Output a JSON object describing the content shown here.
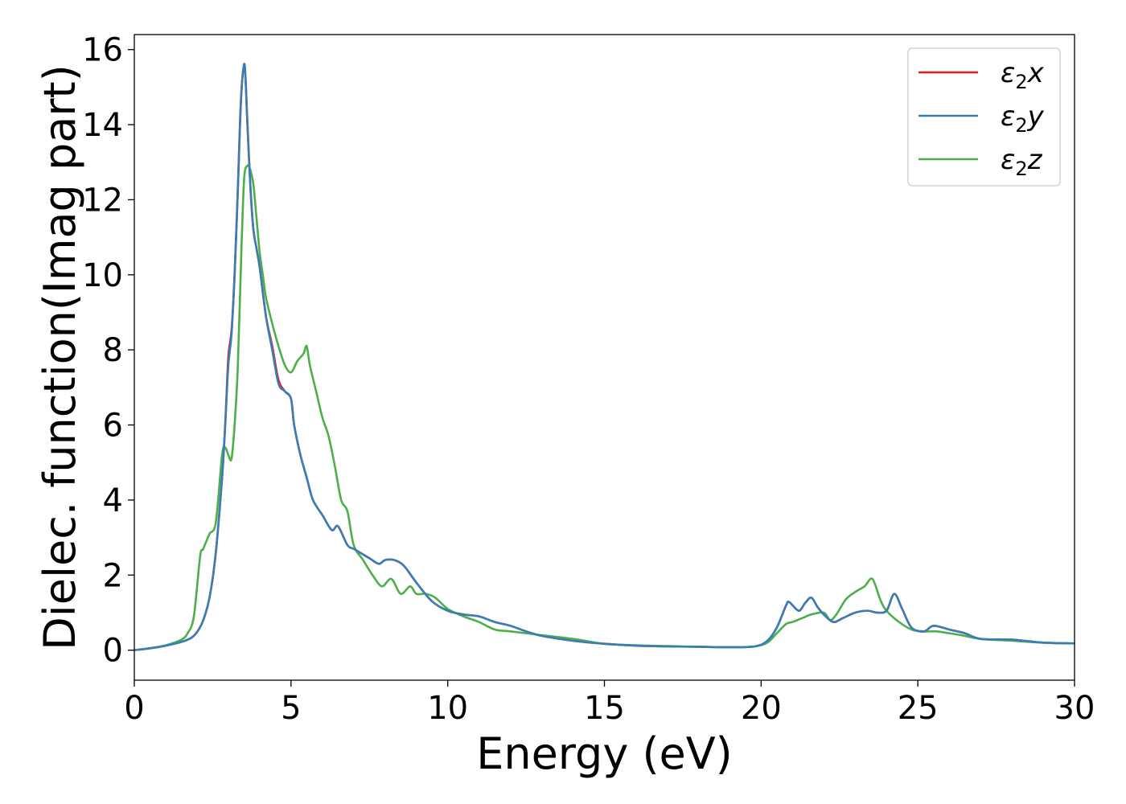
{
  "chart_data": {
    "type": "line",
    "xlabel": "Energy (eV)",
    "ylabel": "Dielec. function(Imag part)",
    "xlim": [
      0,
      30
    ],
    "ylim": [
      -0.8,
      16.4
    ],
    "xticks": [
      0,
      5,
      10,
      15,
      20,
      25,
      30
    ],
    "yticks": [
      0,
      2,
      4,
      6,
      8,
      10,
      12,
      14,
      16
    ],
    "grid": false,
    "legend_position": "top-right",
    "series": [
      {
        "name": "ε2x",
        "legend_main": "ε",
        "legend_sub": "2",
        "legend_suffix": "x",
        "color": "#e41a1c",
        "x": [
          0,
          0.5,
          1.0,
          1.5,
          1.8,
          2.0,
          2.2,
          2.4,
          2.6,
          2.8,
          2.9,
          3.0,
          3.1,
          3.2,
          3.3,
          3.4,
          3.5,
          3.55,
          3.6,
          3.7,
          3.8,
          3.9,
          4.0,
          4.2,
          4.4,
          4.6,
          4.8,
          5.0,
          5.1,
          5.3,
          5.5,
          5.7,
          6.0,
          6.3,
          6.5,
          6.8,
          7.0,
          7.2,
          7.5,
          7.8,
          8.0,
          8.3,
          8.6,
          9.0,
          9.5,
          10.0,
          10.5,
          11.0,
          11.5,
          12.0,
          12.5,
          13.0,
          14.0,
          15.0,
          16.0,
          17.0,
          18.0,
          19.0,
          19.8,
          20.2,
          20.5,
          20.8,
          20.9,
          21.2,
          21.4,
          21.6,
          21.8,
          22.0,
          22.3,
          22.6,
          23.0,
          23.4,
          23.7,
          24.0,
          24.25,
          24.5,
          24.8,
          25.2,
          25.5,
          26.0,
          26.5,
          27.0,
          28.0,
          29.0,
          30.0
        ],
        "values": [
          0.0,
          0.05,
          0.12,
          0.22,
          0.32,
          0.48,
          0.8,
          1.4,
          2.6,
          4.6,
          6.0,
          7.8,
          8.5,
          10.0,
          12.2,
          14.6,
          15.6,
          15.2,
          14.2,
          12.4,
          11.2,
          10.7,
          10.2,
          8.9,
          8.1,
          7.2,
          6.9,
          6.7,
          6.0,
          5.2,
          4.6,
          4.0,
          3.6,
          3.2,
          3.3,
          2.8,
          2.7,
          2.6,
          2.45,
          2.3,
          2.4,
          2.4,
          2.25,
          1.8,
          1.3,
          1.05,
          0.95,
          0.9,
          0.75,
          0.65,
          0.5,
          0.38,
          0.25,
          0.17,
          0.12,
          0.1,
          0.09,
          0.08,
          0.1,
          0.25,
          0.6,
          1.2,
          1.28,
          1.05,
          1.25,
          1.4,
          1.15,
          0.95,
          0.75,
          0.85,
          1.0,
          1.05,
          1.0,
          1.05,
          1.5,
          1.1,
          0.6,
          0.5,
          0.65,
          0.55,
          0.45,
          0.3,
          0.28,
          0.2,
          0.18
        ]
      },
      {
        "name": "ε2y",
        "legend_main": "ε",
        "legend_sub": "2",
        "legend_suffix": "y",
        "color": "#377eb8",
        "x": [
          0,
          0.5,
          1.0,
          1.5,
          1.8,
          2.0,
          2.2,
          2.4,
          2.6,
          2.8,
          2.9,
          3.0,
          3.1,
          3.2,
          3.3,
          3.4,
          3.5,
          3.55,
          3.6,
          3.7,
          3.8,
          3.9,
          4.0,
          4.2,
          4.4,
          4.6,
          4.8,
          5.0,
          5.1,
          5.3,
          5.5,
          5.7,
          6.0,
          6.3,
          6.5,
          6.8,
          7.0,
          7.2,
          7.5,
          7.8,
          8.0,
          8.3,
          8.6,
          9.0,
          9.5,
          10.0,
          10.5,
          11.0,
          11.5,
          12.0,
          12.5,
          13.0,
          14.0,
          15.0,
          16.0,
          17.0,
          18.0,
          19.0,
          19.8,
          20.2,
          20.5,
          20.8,
          20.9,
          21.2,
          21.4,
          21.6,
          21.8,
          22.0,
          22.3,
          22.6,
          23.0,
          23.4,
          23.7,
          24.0,
          24.25,
          24.5,
          24.8,
          25.2,
          25.5,
          26.0,
          26.5,
          27.0,
          28.0,
          29.0,
          30.0
        ],
        "values": [
          0.0,
          0.05,
          0.12,
          0.22,
          0.32,
          0.48,
          0.8,
          1.4,
          2.6,
          4.6,
          6.0,
          7.6,
          8.4,
          10.0,
          12.2,
          14.6,
          15.6,
          15.2,
          14.2,
          12.4,
          11.2,
          10.7,
          10.2,
          8.9,
          8.0,
          7.1,
          6.9,
          6.7,
          6.0,
          5.2,
          4.6,
          4.0,
          3.6,
          3.2,
          3.3,
          2.8,
          2.7,
          2.6,
          2.45,
          2.3,
          2.4,
          2.4,
          2.25,
          1.8,
          1.3,
          1.05,
          0.95,
          0.9,
          0.75,
          0.65,
          0.5,
          0.38,
          0.25,
          0.17,
          0.12,
          0.1,
          0.09,
          0.08,
          0.1,
          0.25,
          0.6,
          1.2,
          1.28,
          1.05,
          1.25,
          1.4,
          1.15,
          0.95,
          0.75,
          0.85,
          1.0,
          1.05,
          1.0,
          1.05,
          1.5,
          1.1,
          0.6,
          0.5,
          0.65,
          0.55,
          0.45,
          0.3,
          0.28,
          0.2,
          0.18
        ]
      },
      {
        "name": "ε2z",
        "legend_main": "ε",
        "legend_sub": "2",
        "legend_suffix": "z",
        "color": "#4daf4a",
        "x": [
          0,
          0.5,
          1.0,
          1.5,
          1.7,
          1.9,
          2.1,
          2.2,
          2.4,
          2.6,
          2.8,
          2.9,
          3.0,
          3.1,
          3.2,
          3.3,
          3.4,
          3.5,
          3.6,
          3.7,
          3.8,
          3.9,
          4.0,
          4.1,
          4.2,
          4.4,
          4.6,
          4.8,
          5.0,
          5.2,
          5.4,
          5.5,
          5.6,
          5.8,
          6.0,
          6.2,
          6.4,
          6.6,
          6.8,
          7.0,
          7.3,
          7.6,
          7.9,
          8.2,
          8.5,
          8.8,
          9.0,
          9.3,
          9.6,
          10.0,
          10.5,
          11.0,
          11.5,
          12.0,
          13.0,
          14.0,
          15.0,
          16.0,
          17.0,
          18.0,
          19.0,
          19.8,
          20.2,
          20.5,
          20.8,
          21.0,
          21.3,
          21.6,
          22.0,
          22.2,
          22.4,
          22.7,
          23.0,
          23.3,
          23.55,
          23.8,
          24.0,
          24.4,
          24.8,
          25.2,
          25.6,
          26.0,
          26.5,
          27.0,
          28.0,
          29.0,
          30.0
        ],
        "values": [
          0.0,
          0.05,
          0.13,
          0.28,
          0.45,
          0.9,
          2.5,
          2.7,
          3.1,
          3.4,
          5.2,
          5.4,
          5.2,
          5.1,
          6.0,
          7.5,
          10.2,
          12.5,
          12.9,
          12.8,
          12.4,
          11.5,
          10.6,
          10.0,
          9.4,
          8.7,
          8.1,
          7.6,
          7.4,
          7.7,
          7.9,
          8.1,
          7.6,
          6.9,
          6.2,
          5.7,
          4.9,
          4.0,
          3.7,
          2.8,
          2.4,
          2.0,
          1.7,
          1.9,
          1.5,
          1.7,
          1.5,
          1.5,
          1.4,
          1.1,
          0.9,
          0.75,
          0.55,
          0.5,
          0.4,
          0.3,
          0.17,
          0.13,
          0.11,
          0.09,
          0.08,
          0.1,
          0.2,
          0.45,
          0.7,
          0.75,
          0.85,
          0.95,
          1.0,
          0.8,
          0.95,
          1.35,
          1.55,
          1.7,
          1.9,
          1.35,
          1.05,
          0.75,
          0.55,
          0.5,
          0.5,
          0.45,
          0.38,
          0.3,
          0.25,
          0.2,
          0.18
        ]
      }
    ]
  }
}
